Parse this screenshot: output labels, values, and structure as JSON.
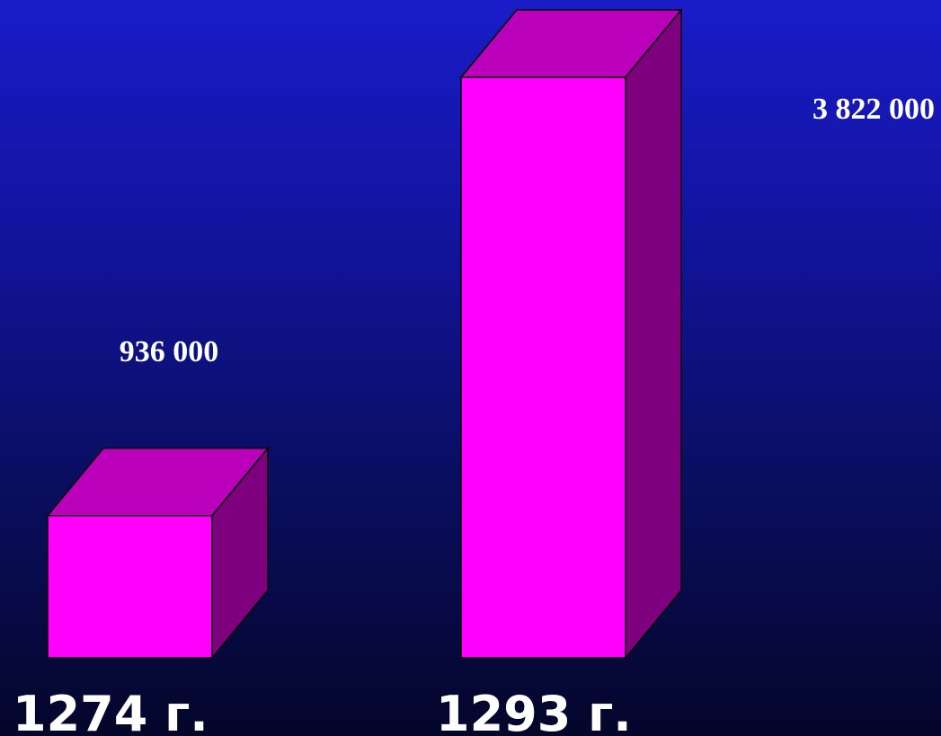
{
  "colors": {
    "front": "#ff00ff",
    "top": "#bb00bb",
    "side": "#7f007f",
    "outline": "#000000",
    "text": "#ffffff"
  },
  "chart_data": {
    "type": "bar",
    "categories": [
      "1274 г.",
      "1293 г."
    ],
    "values": [
      936000,
      3822000
    ],
    "value_labels": [
      "936 000",
      "3 822 000"
    ],
    "grid": false,
    "style": "3d"
  }
}
